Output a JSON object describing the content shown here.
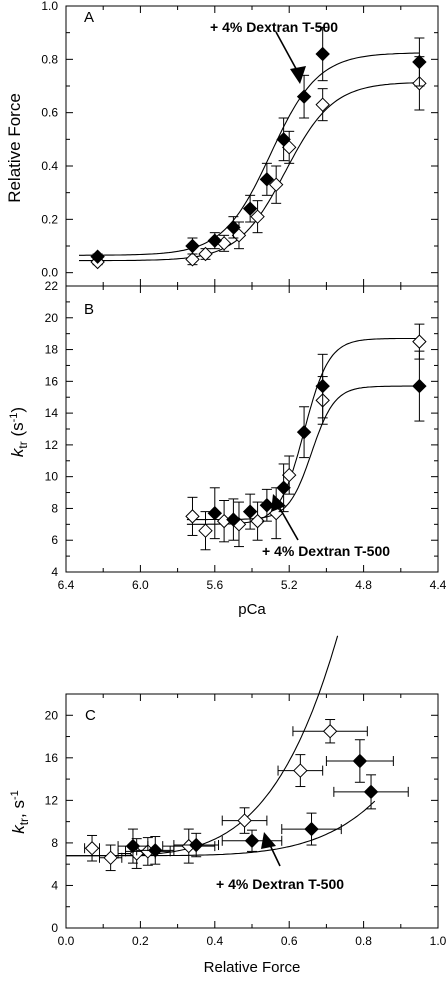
{
  "chart_data": [
    {
      "type": "scatter",
      "panel_label": "A",
      "xlabel": "",
      "ylabel": "Relative Force",
      "xlim": [
        6.4,
        4.4
      ],
      "ylim": [
        -0.05,
        1.0
      ],
      "x_ticks": [
        "6.4",
        "6.0",
        "5.6",
        "5.2",
        "4.8",
        "4.4"
      ],
      "y_ticks": [
        "0.0",
        "0.2",
        "0.4",
        "0.6",
        "0.8",
        "1.0"
      ],
      "annotation": "+ 4% Dextran T-500",
      "grid": false,
      "series": [
        {
          "marker": "filled-diamond",
          "x": [
            6.23,
            5.72,
            5.6,
            5.5,
            5.41,
            5.32,
            5.23,
            5.12,
            5.02,
            4.5
          ],
          "y": [
            0.06,
            0.1,
            0.12,
            0.17,
            0.24,
            0.35,
            0.5,
            0.66,
            0.82,
            0.79
          ],
          "err": [
            0.01,
            0.03,
            0.03,
            0.04,
            0.05,
            0.06,
            0.08,
            0.08,
            0.1,
            0.09
          ],
          "fit": {
            "base": 0.065,
            "amp": 0.76,
            "mid": 5.3,
            "n": 3.4
          }
        },
        {
          "marker": "open-diamond",
          "x": [
            6.23,
            5.72,
            5.65,
            5.55,
            5.47,
            5.37,
            5.27,
            5.2,
            5.02,
            4.5
          ],
          "y": [
            0.04,
            0.05,
            0.07,
            0.11,
            0.14,
            0.21,
            0.33,
            0.47,
            0.63,
            0.71
          ],
          "err": [
            0.01,
            0.02,
            0.02,
            0.03,
            0.05,
            0.06,
            0.07,
            0.06,
            0.06,
            0.1
          ],
          "fit": {
            "base": 0.045,
            "amp": 0.67,
            "mid": 5.22,
            "n": 3.4
          }
        }
      ]
    },
    {
      "type": "scatter",
      "panel_label": "B",
      "xlabel": "pCa",
      "ylabel_main": "k",
      "ylabel_sub": "tr",
      "ylabel_unit": " (s",
      "ylabel_sup": "-1",
      "ylabel_close": ")",
      "xlim": [
        6.4,
        4.4
      ],
      "ylim": [
        4,
        22
      ],
      "x_ticks": [
        "6.4",
        "6.0",
        "5.6",
        "5.2",
        "4.8",
        "4.4"
      ],
      "y_ticks": [
        "4",
        "6",
        "8",
        "10",
        "12",
        "14",
        "16",
        "18",
        "20",
        "22"
      ],
      "annotation": "+ 4% Dextran T-500",
      "grid": false,
      "series": [
        {
          "marker": "filled-diamond",
          "x": [
            5.6,
            5.5,
            5.41,
            5.32,
            5.23,
            5.12,
            5.02,
            4.5
          ],
          "y": [
            7.7,
            7.3,
            7.8,
            8.2,
            9.3,
            12.8,
            15.7,
            15.7
          ],
          "err": [
            1.6,
            1.3,
            1.1,
            1.0,
            1.5,
            1.6,
            2.0,
            2.2
          ],
          "fit": {
            "base": 7.3,
            "amp": 8.4,
            "mid": 5.08,
            "n": 7.0
          }
        },
        {
          "marker": "open-diamond",
          "x": [
            5.72,
            5.65,
            5.55,
            5.47,
            5.37,
            5.27,
            5.2,
            5.02,
            4.5
          ],
          "y": [
            7.5,
            6.6,
            7.2,
            7.0,
            7.2,
            7.7,
            10.1,
            14.8,
            18.5
          ],
          "err": [
            1.2,
            1.2,
            1.3,
            1.4,
            1.2,
            1.6,
            1.2,
            1.5,
            1.1
          ],
          "fit": {
            "base": 7.0,
            "amp": 11.7,
            "mid": 5.12,
            "n": 6.5
          }
        }
      ]
    },
    {
      "type": "scatter",
      "panel_label": "C",
      "xlabel": "Relative Force",
      "ylabel_main": "k",
      "ylabel_sub": "tr",
      "ylabel_unit": ", s",
      "ylabel_sup": "-1",
      "ylabel_close": "",
      "xlim": [
        0.0,
        1.0
      ],
      "ylim": [
        0,
        22
      ],
      "x_ticks": [
        "0.0",
        "0.2",
        "0.4",
        "0.6",
        "0.8",
        "1.0"
      ],
      "y_ticks": [
        "0",
        "4",
        "8",
        "12",
        "16",
        "20"
      ],
      "annotation": "+ 4% Dextran T-500",
      "grid": false,
      "series": [
        {
          "marker": "filled-diamond",
          "x": [
            0.18,
            0.24,
            0.35,
            0.5,
            0.66,
            0.79,
            0.82
          ],
          "y": [
            7.7,
            7.3,
            7.8,
            8.2,
            9.3,
            15.7,
            12.8
          ],
          "xerr": [
            0.04,
            0.05,
            0.06,
            0.08,
            0.08,
            0.09,
            0.1
          ],
          "err": [
            1.6,
            1.3,
            1.1,
            1.0,
            1.5,
            2.0,
            1.6
          ],
          "fit": {
            "base": 6.8,
            "k": 14.3,
            "p": 5.5
          }
        },
        {
          "marker": "open-diamond",
          "x": [
            0.07,
            0.12,
            0.19,
            0.22,
            0.33,
            0.48,
            0.63,
            0.71
          ],
          "y": [
            7.5,
            6.6,
            7.0,
            7.2,
            7.7,
            10.1,
            14.8,
            18.5
          ],
          "xerr": [
            0.02,
            0.03,
            0.05,
            0.06,
            0.07,
            0.06,
            0.06,
            0.1
          ],
          "err": [
            1.2,
            1.2,
            1.4,
            1.3,
            1.6,
            1.2,
            1.5,
            1.1
          ],
          "fit": {
            "base": 6.8,
            "k": 80.0,
            "p": 4.3
          }
        }
      ]
    }
  ]
}
